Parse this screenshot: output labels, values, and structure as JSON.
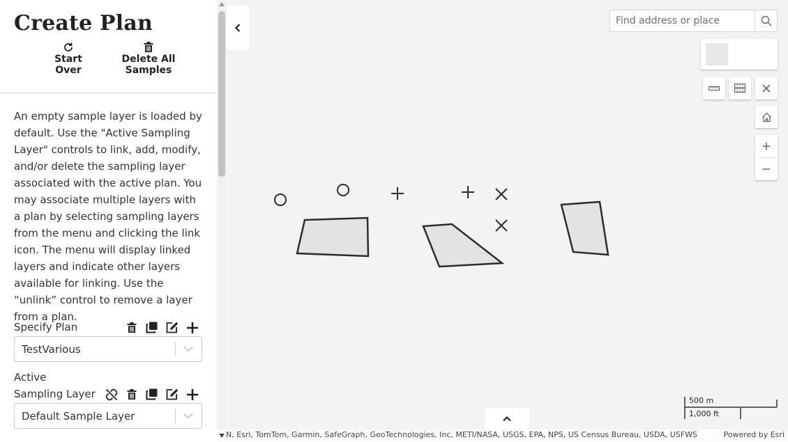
{
  "panel": {
    "title": "Create Plan",
    "start_over_line1": "Start",
    "start_over_line2": "Over",
    "delete_all_line1": "Delete All",
    "delete_all_line2": "Samples",
    "description": "An empty sample layer is loaded by default. Use the \"Active Sampling Layer\" controls to link, add, modify, and/or delete the sampling layer associated with the active plan. You may associate multiple layers with a plan by selecting sampling layers from the menu and clicking the link icon. The menu will display linked layers and indicate other layers available for linking. Use the “unlink” control to remove a layer from a plan.",
    "specify_plan_label": "Specify Plan",
    "specify_plan_value": "TestVarious",
    "active_label_line1": "Active",
    "active_label_line2": "Sampling Layer",
    "active_layer_value": "Default Sample Layer"
  },
  "map": {
    "search_placeholder": "Find address or place",
    "scale_metric": "500 m",
    "scale_imperial": "1,000 ft",
    "attribution": "N, Esri, TomTom, Garmin, SafeGraph, GeoTechnologies, Inc, METI/NASA, USGS, EPA, NPS, US Census Bureau, USDA, USFWS",
    "powered_by": "Powered by Esri"
  },
  "icons": {
    "start_over": "refresh-icon",
    "delete_all": "trash-icon",
    "delete": "trash-icon",
    "clone": "copy-icon",
    "edit": "edit-icon",
    "add": "plus-icon",
    "unlink": "unlink-icon",
    "search": "search-icon",
    "home": "home-icon",
    "measure": "ruler-icon",
    "area": "area-measure-icon",
    "close": "close-icon"
  },
  "colors": {
    "polygon_fill": "#e3e3e3",
    "polygon_stroke": "#2b2b2b",
    "map_background": "#f3f3f3"
  }
}
